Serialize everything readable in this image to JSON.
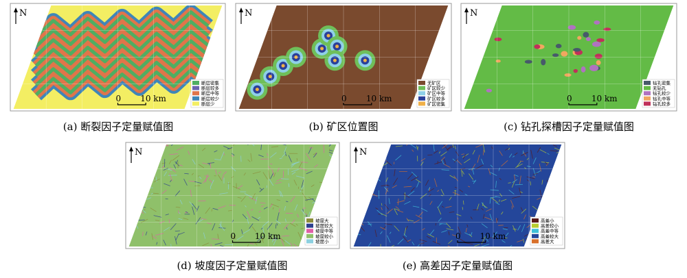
{
  "panels": [
    {
      "caption": "(a) 断裂因子定量赋值图",
      "north": "N",
      "scale": [
        "0",
        "10 km"
      ],
      "legend": [
        {
          "label": "断层密集",
          "color": "#4fae62"
        },
        {
          "label": "断层较多",
          "color": "#6a64b0"
        },
        {
          "label": "断层中等",
          "color": "#e0754a"
        },
        {
          "label": "断层较少",
          "color": "#3f86b8"
        },
        {
          "label": "断层少",
          "color": "#f3ee63"
        }
      ]
    },
    {
      "caption": "(b) 矿区位置图",
      "north": "N",
      "scale": [
        "0",
        "10 km"
      ],
      "legend": [
        {
          "label": "无矿区",
          "color": "#7a4a2e"
        },
        {
          "label": "矿区较少",
          "color": "#6fbf5a"
        },
        {
          "label": "矿区中等",
          "color": "#8fd0e8"
        },
        {
          "label": "矿区较多",
          "color": "#2b3f9a"
        },
        {
          "label": "矿区密集",
          "color": "#f0b048"
        }
      ]
    },
    {
      "caption": "(c) 钻孔探槽因子定量赋值图",
      "north": "N",
      "scale": [
        "0",
        "10 km"
      ],
      "legend": [
        {
          "label": "钻孔密集",
          "color": "#475a6a"
        },
        {
          "label": "无钻孔",
          "color": "#63bb46"
        },
        {
          "label": "钻孔较少",
          "color": "#b072c0"
        },
        {
          "label": "钻孔中等",
          "color": "#f1a760"
        },
        {
          "label": "钻孔较多",
          "color": "#c0305a"
        }
      ]
    },
    {
      "caption": "(d) 坡度因子定量赋值图",
      "north": "N",
      "scale": [
        "0",
        "10 km"
      ],
      "legend": [
        {
          "label": "坡度大",
          "color": "#8c8c3a"
        },
        {
          "label": "坡度较大",
          "color": "#2c3f8e"
        },
        {
          "label": "坡度中等",
          "color": "#e060a8"
        },
        {
          "label": "坡度较小",
          "color": "#8fc06a"
        },
        {
          "label": "坡度小",
          "color": "#8cd0e0"
        }
      ]
    },
    {
      "caption": "(e) 高差因子定量赋值图",
      "north": "N",
      "scale": [
        "0",
        "10 km"
      ],
      "legend": [
        {
          "label": "高差小",
          "color": "#5a1a1a"
        },
        {
          "label": "高差较小",
          "color": "#b8cc30"
        },
        {
          "label": "高差中等",
          "color": "#40c0d8"
        },
        {
          "label": "高差较大",
          "color": "#24469a"
        },
        {
          "label": "高差大",
          "color": "#d8702a"
        }
      ]
    }
  ]
}
